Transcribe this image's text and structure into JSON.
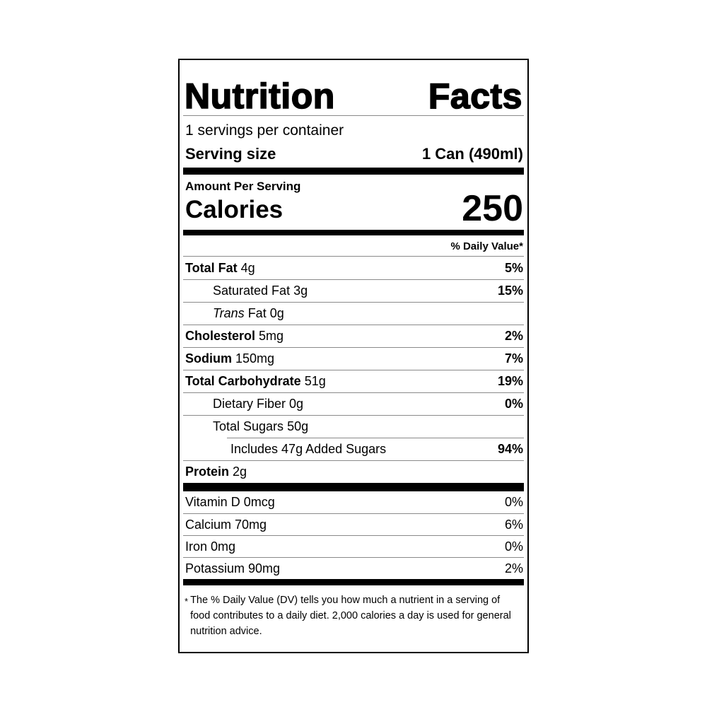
{
  "label": {
    "title_first": "Nutrition",
    "title_second": "Facts",
    "servings_per_container": "1 servings per container",
    "serving_size_label": "Serving size",
    "serving_size_value": "1 Can (490ml)",
    "amount_per_serving": "Amount Per Serving",
    "calories_label": "Calories",
    "calories_value": "250",
    "daily_value_header": "% Daily Value*",
    "nutrients": [
      {
        "name": "Total Fat",
        "amount": "4g",
        "dv": "5%"
      },
      {
        "name": "Saturated Fat",
        "amount": "3g",
        "dv": "15%"
      },
      {
        "name": "Trans",
        "amount": "Fat 0g",
        "dv": ""
      },
      {
        "name": "Cholesterol",
        "amount": "5mg",
        "dv": "2%"
      },
      {
        "name": "Sodium",
        "amount": "150mg",
        "dv": "7%"
      },
      {
        "name": "Total Carbohydrate",
        "amount": "51g",
        "dv": "19%"
      },
      {
        "name": "Dietary Fiber",
        "amount": "0g",
        "dv": "0%"
      },
      {
        "name": "Total Sugars",
        "amount": "50g",
        "dv": ""
      },
      {
        "name": "Includes 47g Added Sugars",
        "dv": "94%"
      },
      {
        "name": "Protein",
        "amount": "2g",
        "dv": ""
      }
    ],
    "vitamins": [
      {
        "name": "Vitamin D 0mcg",
        "dv": "0%"
      },
      {
        "name": "Calcium 70mg",
        "dv": "6%"
      },
      {
        "name": "Iron 0mg",
        "dv": "0%"
      },
      {
        "name": "Potassium 90mg",
        "dv": "2%"
      }
    ],
    "footnote_marker": "*",
    "footnote": "The % Daily Value (DV) tells you how much a nutrient in a serving of food contributes to a daily diet. 2,000 calories a day is used for general nutrition advice."
  },
  "colors": {
    "text": "#000000",
    "background": "#ffffff",
    "hairline": "#8a8a8a",
    "bar": "#000000"
  }
}
